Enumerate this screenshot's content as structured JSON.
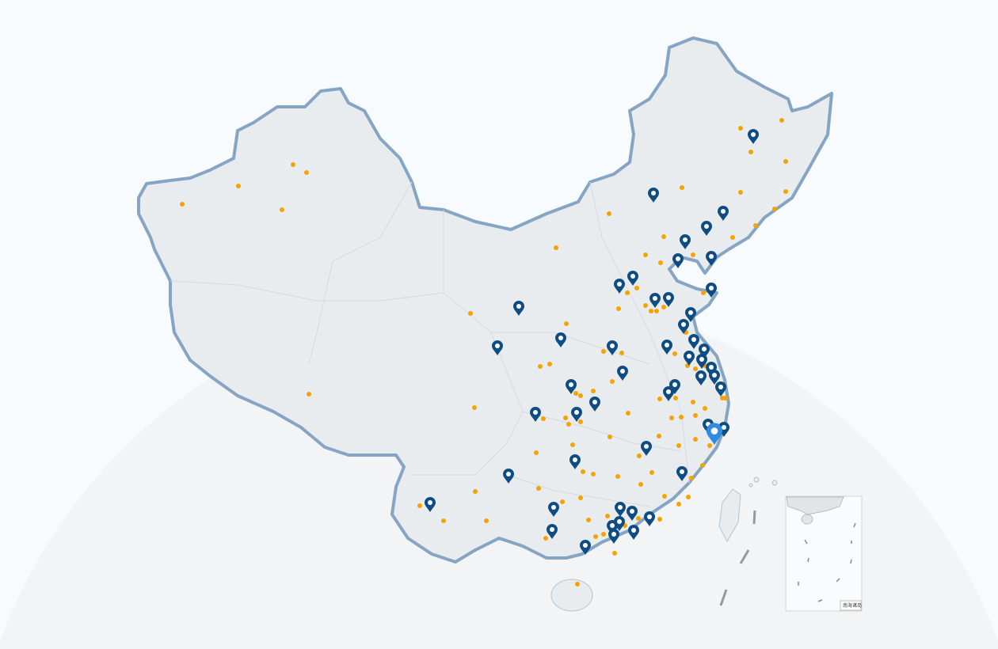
{
  "map": {
    "colors": {
      "background": "#f7fbfe",
      "backdrop_circle": "#f3f4f6",
      "land_fill": "#e9ecef",
      "border_stroke": "#86a5c4",
      "marker": "#0f4c81",
      "marker_selected": "#2f8ae0",
      "city_dot": "#f5a300"
    },
    "icons": {
      "marker": "map-pin-icon",
      "marker_selected": "map-pin-selected-icon",
      "city_dot": "city-dot-icon"
    },
    "inset": {
      "label": "南海诸岛"
    }
  }
}
